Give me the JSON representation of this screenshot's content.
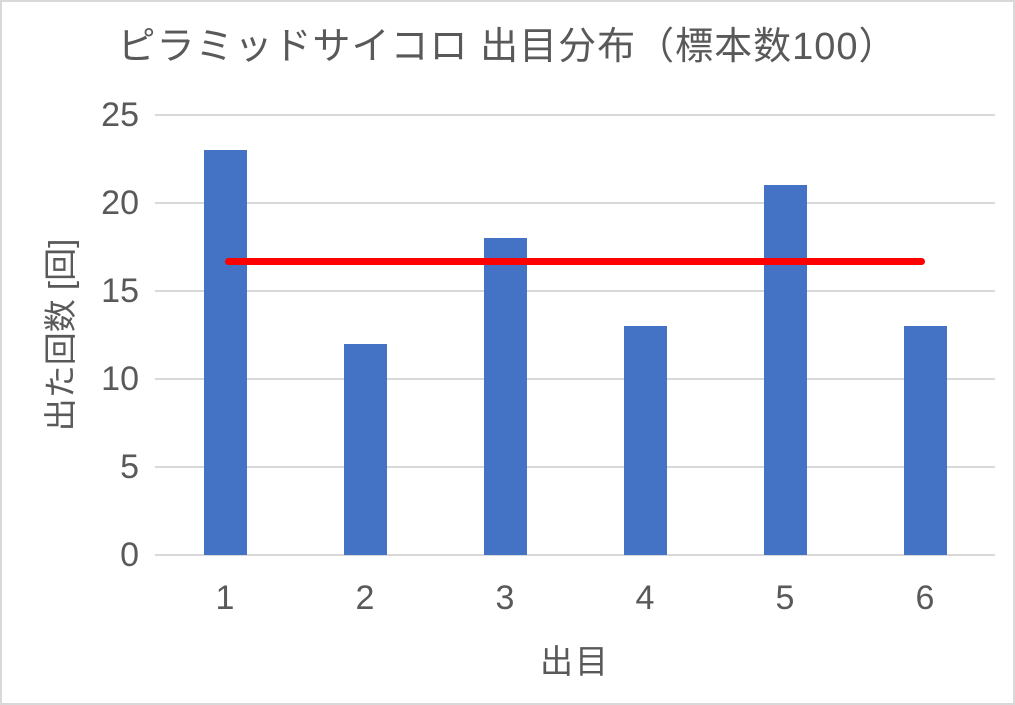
{
  "frame": {
    "background": "#FFFFFF",
    "border_color": "#D9D9D9"
  },
  "chart_data": {
    "type": "bar",
    "title": "ピラミッドサイコロ 出目分布（標本数100）",
    "categories": [
      "1",
      "2",
      "3",
      "4",
      "5",
      "6"
    ],
    "values": [
      23,
      12,
      18,
      13,
      21,
      13
    ],
    "xlabel": "出目",
    "ylabel": "出た回数 [回]",
    "ylim": [
      0,
      25
    ],
    "yticks": [
      0,
      5,
      10,
      15,
      20,
      25
    ],
    "grid": "horizontal",
    "legend": "none",
    "bar_color": "#4472C4",
    "text_color": "#595959",
    "gridline_color": "#D9D9D9",
    "reference_line": {
      "value": 16.67,
      "color": "#FF0000",
      "thickness_px": 7,
      "from_category": "1",
      "to_category": "6"
    }
  }
}
